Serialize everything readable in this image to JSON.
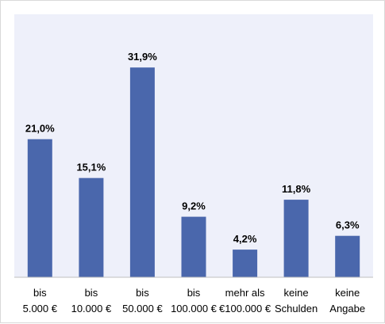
{
  "chart_data": {
    "type": "bar",
    "categories": [
      [
        "bis",
        "5.000 €"
      ],
      [
        "bis",
        "10.000 €"
      ],
      [
        "bis",
        "50.000 €"
      ],
      [
        "bis",
        "100.000 €"
      ],
      [
        "mehr als",
        "€100.000 €"
      ],
      [
        "keine",
        "Schulden"
      ],
      [
        "keine",
        "Angabe"
      ]
    ],
    "values": [
      21.0,
      15.1,
      31.9,
      9.2,
      4.2,
      11.8,
      6.3
    ],
    "data_labels": [
      "21,0%",
      "15,1%",
      "31,9%",
      "9,2%",
      "4,2%",
      "11,8%",
      "6,3%"
    ],
    "ylim": [
      0,
      40
    ],
    "grid": false,
    "legend": "none",
    "colors": {
      "bar": "#4a67ac",
      "plot_background": "#eef0fa",
      "axis": "#bfbfbf"
    }
  }
}
